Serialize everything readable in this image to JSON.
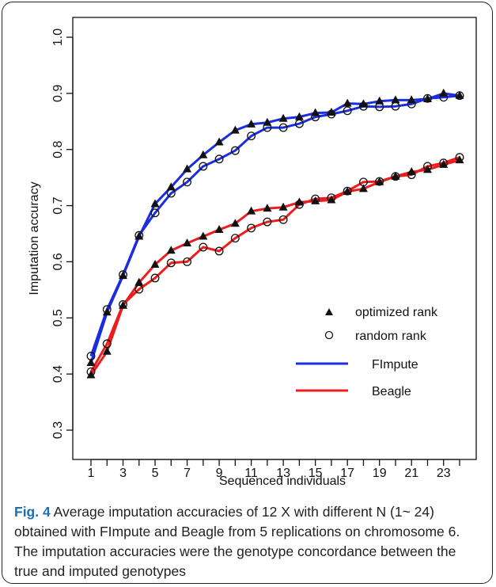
{
  "chart_data": {
    "type": "line",
    "xlabel": "Sequenced individuals",
    "ylabel": "Imputation accuracy",
    "xlim": [
      1,
      24
    ],
    "ylim": [
      0.3,
      1.0
    ],
    "x_tick_labels": [
      "1",
      "3",
      "5",
      "7",
      "9",
      "11",
      "13",
      "15",
      "17",
      "19",
      "21",
      "23"
    ],
    "y_tick_labels": [
      "0.3",
      "0.4",
      "0.5",
      "0.6",
      "0.7",
      "0.8",
      "0.9",
      "1.0"
    ],
    "y_ticks": [
      0.3,
      0.4,
      0.5,
      0.6,
      0.7,
      0.8,
      0.9,
      1.0
    ],
    "x": [
      1,
      2,
      3,
      4,
      5,
      6,
      7,
      8,
      9,
      10,
      11,
      12,
      13,
      14,
      15,
      16,
      17,
      18,
      19,
      20,
      21,
      22,
      23,
      24
    ],
    "legend_position": "bottom-right",
    "legend": {
      "optimized": "optimized rank",
      "random": "random rank",
      "fimpute": "FImpute",
      "beagle": "Beagle"
    },
    "series": [
      {
        "name": "FImpute",
        "rank": "optimized",
        "color": "#1a2ee0",
        "marker": "triangle",
        "values": [
          0.42,
          0.51,
          0.575,
          0.645,
          0.703,
          0.733,
          0.765,
          0.79,
          0.813,
          0.834,
          0.845,
          0.848,
          0.855,
          0.858,
          0.865,
          0.866,
          0.882,
          0.881,
          0.886,
          0.888,
          0.888,
          0.89,
          0.9,
          0.896
        ]
      },
      {
        "name": "FImpute",
        "rank": "random",
        "color": "#1a2ee0",
        "marker": "circle",
        "values": [
          0.432,
          0.515,
          0.577,
          0.647,
          0.687,
          0.722,
          0.742,
          0.77,
          0.783,
          0.798,
          0.824,
          0.839,
          0.839,
          0.846,
          0.858,
          0.863,
          0.869,
          0.877,
          0.876,
          0.877,
          0.881,
          0.891,
          0.893,
          0.896
        ]
      },
      {
        "name": "Beagle",
        "rank": "optimized",
        "color": "#ee1c1c",
        "marker": "triangle",
        "values": [
          0.398,
          0.44,
          0.522,
          0.563,
          0.595,
          0.62,
          0.633,
          0.645,
          0.657,
          0.668,
          0.69,
          0.695,
          0.697,
          0.706,
          0.708,
          0.71,
          0.725,
          0.73,
          0.742,
          0.752,
          0.76,
          0.764,
          0.773,
          0.781
        ]
      },
      {
        "name": "Beagle",
        "rank": "random",
        "color": "#ee1c1c",
        "marker": "circle",
        "values": [
          0.404,
          0.454,
          0.524,
          0.551,
          0.571,
          0.598,
          0.6,
          0.626,
          0.619,
          0.642,
          0.66,
          0.671,
          0.675,
          0.702,
          0.712,
          0.714,
          0.726,
          0.742,
          0.743,
          0.752,
          0.755,
          0.77,
          0.776,
          0.786
        ]
      }
    ]
  },
  "caption": {
    "figure_label": "Fig. 4",
    "text": "Average imputation accuracies of 12 X with different N (1~ 24) obtained with FImpute and Beagle from 5 replications on chromosome 6. The imputation accuracies were the genotype concordance between the true and imputed genotypes"
  }
}
